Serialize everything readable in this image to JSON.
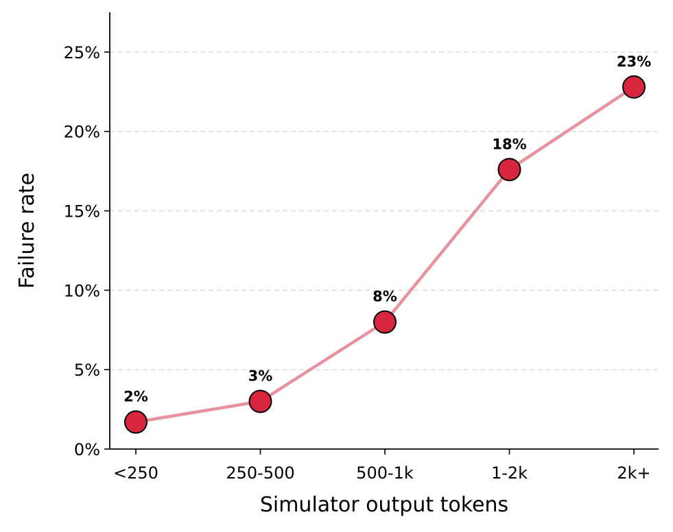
{
  "chart_data": {
    "type": "line",
    "categories": [
      "<250",
      "250-500",
      "500-1k",
      "1-2k",
      "2k+"
    ],
    "values": [
      1.7,
      3.0,
      8.0,
      17.6,
      22.8
    ],
    "data_labels": [
      "2%",
      "3%",
      "8%",
      "18%",
      "23%"
    ],
    "xlabel": "Simulator output tokens",
    "ylabel": "Failure rate",
    "ylim": [
      0,
      27.5
    ],
    "yticks": [
      0,
      5,
      10,
      15,
      20,
      25
    ],
    "ytick_labels": [
      "0%",
      "5%",
      "10%",
      "15%",
      "20%",
      "25%"
    ],
    "grid": "y-dashed",
    "colors": {
      "line": "#e8919f",
      "marker": "#d7263d",
      "marker_edge": "#000000",
      "grid": "#d9d9d9"
    }
  }
}
